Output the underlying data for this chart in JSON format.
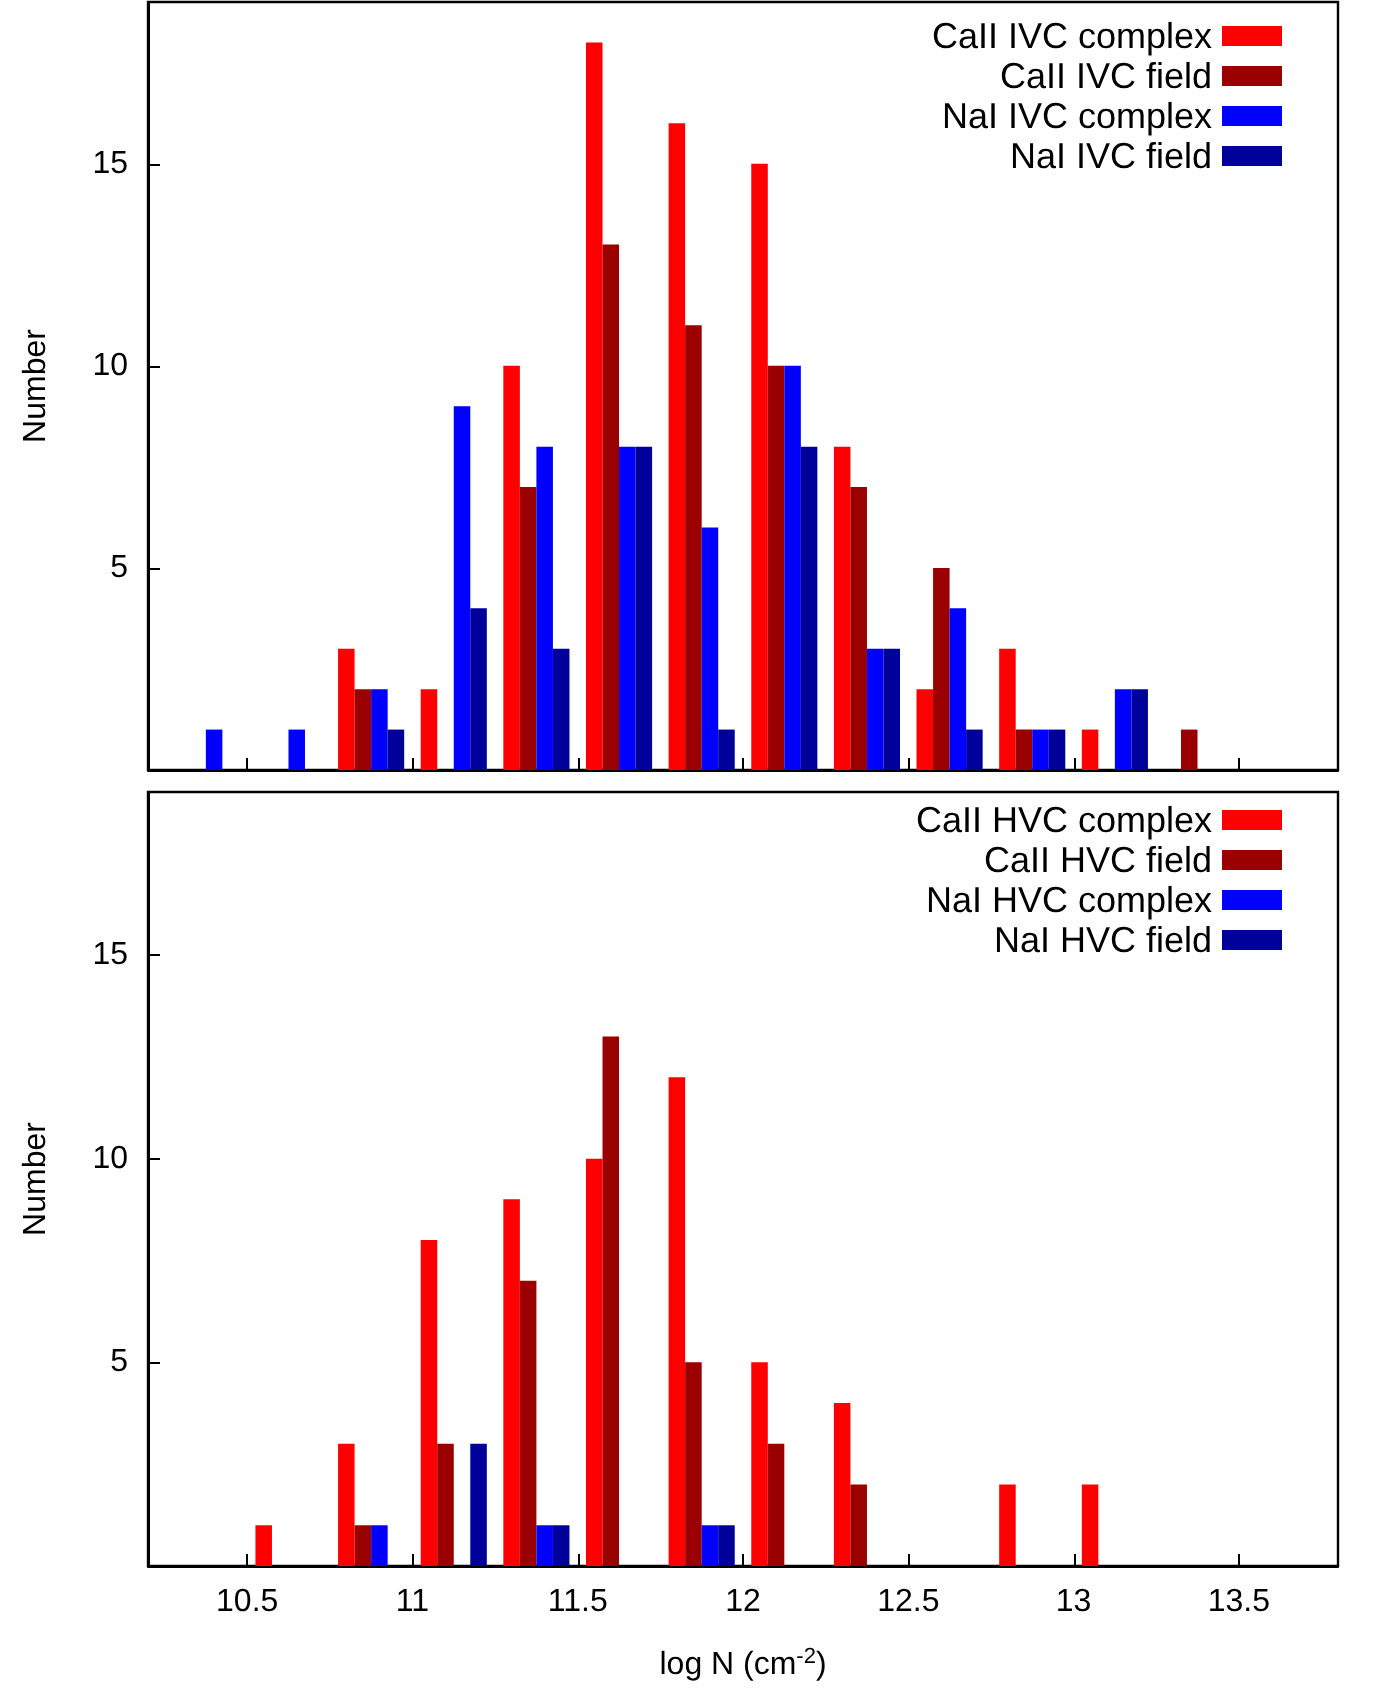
{
  "chart_data": [
    {
      "type": "histogram",
      "ylabel": "Number",
      "bins": [
        10.25,
        10.5,
        10.75,
        11,
        11.25,
        11.5,
        11.75,
        12,
        12.25,
        12.5,
        12.75,
        13,
        13.25,
        13.5,
        13.75
      ],
      "xlim": [
        10.2,
        13.8
      ],
      "xticks": [
        10.5,
        11,
        11.5,
        12,
        12.5,
        13,
        13.5
      ],
      "ylim": [
        0,
        19
      ],
      "yticks": [
        5,
        10,
        15
      ],
      "tick_labels": "y",
      "legend": "top right",
      "grid": false,
      "series": [
        {
          "name": "CaII IVC complex",
          "color": "#ff0000",
          "values": [
            0,
            0,
            3,
            2,
            10,
            18,
            16,
            15,
            8,
            2,
            3,
            1,
            0,
            0
          ]
        },
        {
          "name": "CaII IVC field",
          "color": "#9a0000",
          "values": [
            0,
            0,
            2,
            0,
            7,
            13,
            11,
            10,
            7,
            5,
            1,
            0,
            1,
            0
          ]
        },
        {
          "name": "NaI IVC complex",
          "color": "#0000ff",
          "values": [
            1,
            1,
            2,
            9,
            8,
            8,
            6,
            10,
            3,
            4,
            1,
            2,
            0,
            0
          ]
        },
        {
          "name": "NaI IVC field",
          "color": "#00009a",
          "values": [
            0,
            0,
            1,
            4,
            3,
            8,
            1,
            8,
            3,
            1,
            1,
            2,
            0,
            0
          ]
        }
      ]
    },
    {
      "type": "histogram",
      "xlabel": "log N (cm$^{-2}$)",
      "ylabel": "Number",
      "bins": [
        10.25,
        10.5,
        10.75,
        11,
        11.25,
        11.5,
        11.75,
        12,
        12.25,
        12.5,
        12.75,
        13,
        13.25,
        13.5,
        13.75
      ],
      "xlim": [
        10.2,
        13.8
      ],
      "xticks": [
        10.5,
        11,
        11.5,
        12,
        12.5,
        13,
        13.5
      ],
      "ylim": [
        0,
        19
      ],
      "yticks": [
        5,
        10,
        15
      ],
      "legend": "top right",
      "grid": false,
      "series": [
        {
          "name": "CaII HVC complex",
          "color": "#ff0000",
          "values": [
            0,
            1,
            3,
            8,
            9,
            10,
            12,
            5,
            4,
            0,
            2,
            2,
            0,
            0
          ]
        },
        {
          "name": "CaII HVC field",
          "color": "#9a0000",
          "values": [
            0,
            0,
            1,
            3,
            7,
            13,
            5,
            3,
            2,
            0,
            0,
            0,
            0,
            0
          ]
        },
        {
          "name": "NaI HVC complex",
          "color": "#0000ff",
          "values": [
            0,
            0,
            1,
            0,
            1,
            0,
            1,
            0,
            0,
            0,
            0,
            0,
            0,
            0
          ]
        },
        {
          "name": "NaI HVC field",
          "color": "#00009a",
          "values": [
            0,
            0,
            0,
            3,
            1,
            0,
            1,
            0,
            0,
            0,
            0,
            0,
            0,
            0
          ]
        }
      ]
    }
  ]
}
